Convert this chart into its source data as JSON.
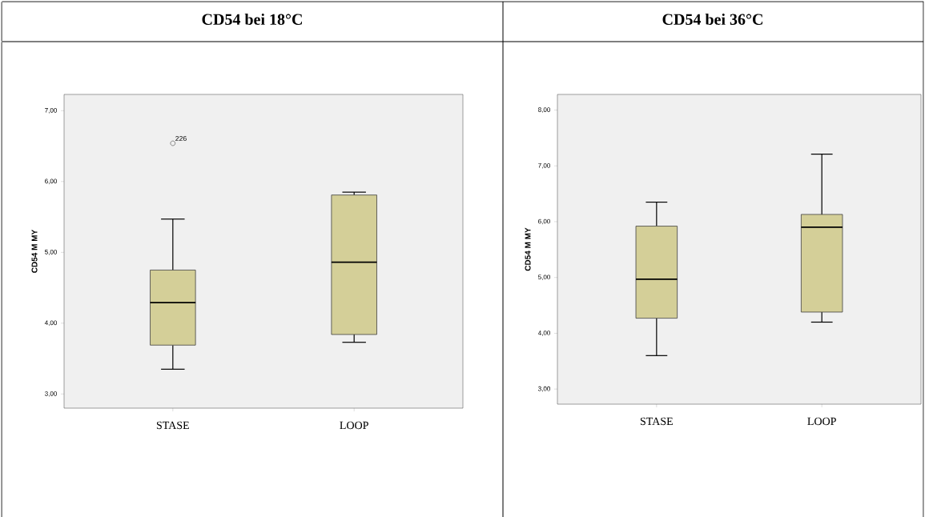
{
  "chart_data": [
    {
      "type": "box",
      "title": "CD54 bei 18°C",
      "ylabel": "CD54 M MY",
      "categories": [
        "STASE",
        "LOOP"
      ],
      "series": [
        {
          "color": "#d4cf98",
          "boxes": [
            {
              "low": 3.35,
              "q1": 3.69,
              "median": 4.29,
              "q3": 4.75,
              "high": 5.47,
              "outliers": [
                6.54
              ]
            },
            {
              "low": 3.73,
              "q1": 3.84,
              "median": 4.86,
              "q3": 5.81,
              "high": 5.85
            }
          ]
        }
      ],
      "ylim": [
        2.8,
        7.23
      ],
      "yticks": [
        {
          "value": 3,
          "label": "3,00"
        },
        {
          "value": 4,
          "label": "4,00"
        },
        {
          "value": 5,
          "label": "5,00"
        },
        {
          "value": 6,
          "label": "6,00"
        },
        {
          "value": 7,
          "label": "7,00"
        }
      ],
      "annotations": [
        "226"
      ]
    },
    {
      "type": "box",
      "title": "CD54 bei 36°C",
      "ylabel": "CD54 M MY",
      "categories": [
        "STASE",
        "LOOP"
      ],
      "series": [
        {
          "color": "#d4cf98",
          "boxes": [
            {
              "low": 3.6,
              "q1": 4.27,
              "median": 4.97,
              "q3": 5.92,
              "high": 6.35
            },
            {
              "low": 4.2,
              "q1": 4.38,
              "median": 5.9,
              "q3": 6.13,
              "high": 7.21
            }
          ]
        }
      ],
      "ylim": [
        2.73,
        8.28
      ],
      "yticks": [
        {
          "value": 3,
          "label": "3,00"
        },
        {
          "value": 4,
          "label": "4,00"
        },
        {
          "value": 5,
          "label": "5,00"
        },
        {
          "value": 6,
          "label": "6,00"
        },
        {
          "value": 7,
          "label": "7,00"
        },
        {
          "value": 8,
          "label": "8,00"
        }
      ]
    }
  ]
}
